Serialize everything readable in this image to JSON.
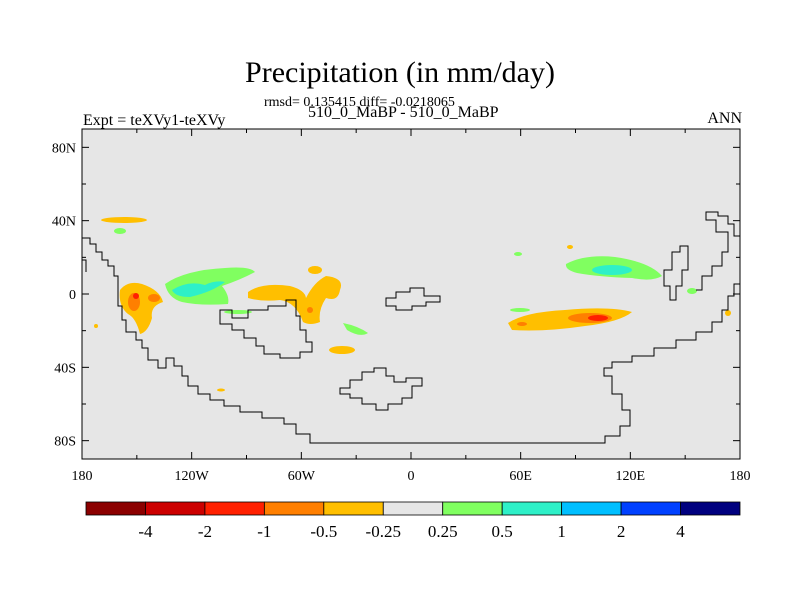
{
  "chart_data": {
    "type": "heatmap",
    "title": "Precipitation (in mm/day)",
    "stats_text": "rmsd= 0.135415 diff= -0.0218065",
    "left_label": "Expt = teXVy1-teXVy",
    "center_label": "510_0_MaBP - 510_0_MaBP",
    "right_label": "ANN",
    "x_ticks": [
      "180",
      "120W",
      "60W",
      "0",
      "60E",
      "120E",
      "180"
    ],
    "x_values": [
      -180,
      -120,
      -60,
      0,
      60,
      120,
      180
    ],
    "y_ticks": [
      "80N",
      "40N",
      "0",
      "40S",
      "80S"
    ],
    "y_values": [
      80,
      40,
      0,
      -40,
      -80
    ],
    "xlim": [
      -180,
      180
    ],
    "ylim": [
      -90,
      90
    ],
    "colorbar": {
      "colors": [
        "#8b0000",
        "#cc0000",
        "#ff2000",
        "#ff7f00",
        "#ffbf00",
        "#e6e6e6",
        "#80ff60",
        "#2ef0c8",
        "#00bfff",
        "#0040ff",
        "#00007f"
      ],
      "labels": [
        "-4",
        "-2",
        "-1",
        "-0.5",
        "-0.25",
        "0.25",
        "0.5",
        "1",
        "2",
        "4"
      ]
    },
    "background_color": "#e6e6e6"
  }
}
